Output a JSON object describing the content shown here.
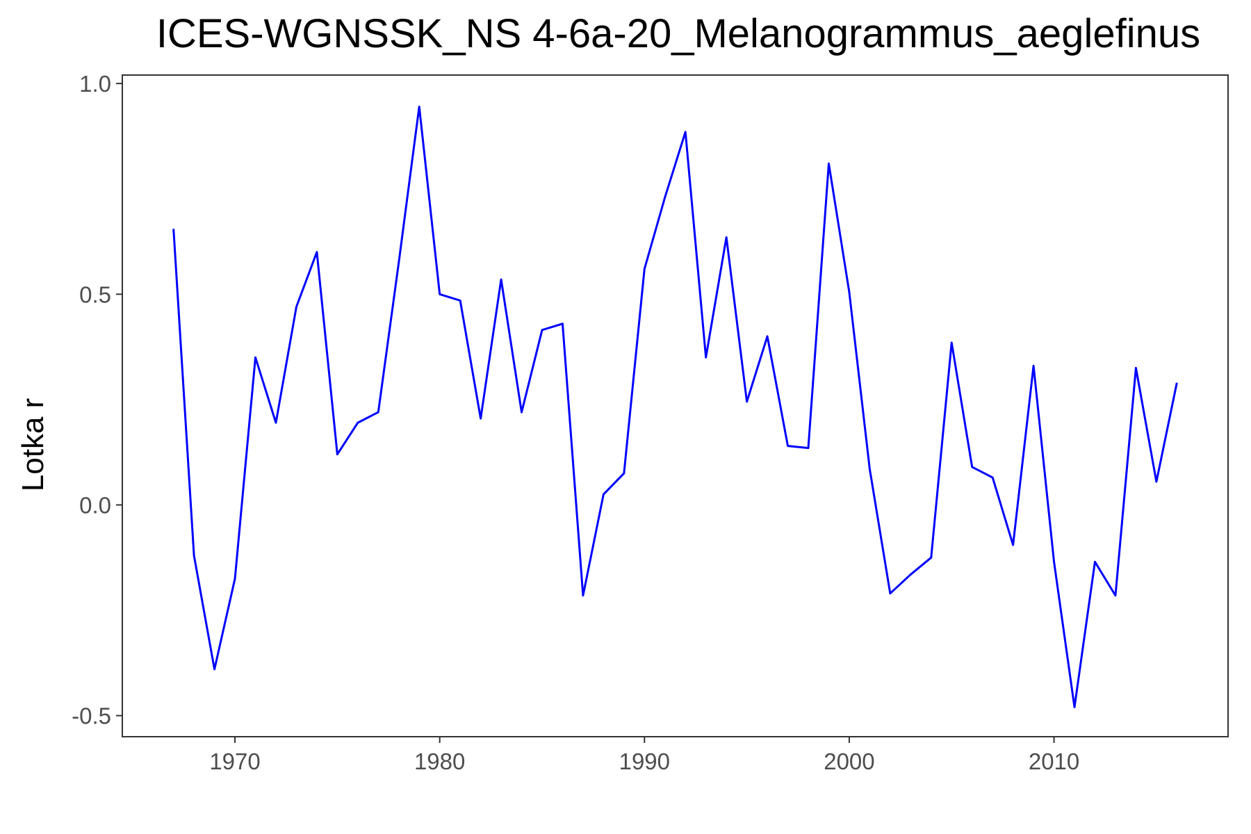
{
  "chart_data": {
    "type": "line",
    "title": "ICES-WGNSSK_NS  4-6a-20_Melanogrammus_aeglefinus",
    "xlabel": "",
    "ylabel": "Lotka r",
    "xlim": [
      1964.5,
      2018.5
    ],
    "ylim": [
      -0.55,
      1.02
    ],
    "x_ticks": [
      1970,
      1980,
      1990,
      2000,
      2010
    ],
    "x_tick_labels": [
      "1970",
      "1980",
      "1990",
      "2000",
      "2010"
    ],
    "y_ticks": [
      -0.5,
      0.0,
      0.5,
      1.0
    ],
    "y_tick_labels": [
      "-0.5",
      "0.0",
      "0.5",
      "1.0"
    ],
    "grid": false,
    "line_color": "#0000ff",
    "axis_color": "#333333",
    "x": [
      1967,
      1968,
      1969,
      1970,
      1971,
      1972,
      1973,
      1974,
      1975,
      1976,
      1977,
      1978,
      1979,
      1980,
      1981,
      1982,
      1983,
      1984,
      1985,
      1986,
      1987,
      1988,
      1989,
      1990,
      1991,
      1992,
      1993,
      1994,
      1995,
      1996,
      1997,
      1998,
      1999,
      2000,
      2001,
      2002,
      2003,
      2004,
      2005,
      2006,
      2007,
      2008,
      2009,
      2010,
      2011,
      2012,
      2013,
      2014,
      2015,
      2016
    ],
    "y": [
      0.655,
      -0.12,
      -0.39,
      -0.175,
      0.35,
      0.195,
      0.47,
      0.6,
      0.12,
      0.195,
      0.22,
      0.575,
      0.945,
      0.5,
      0.485,
      0.205,
      0.535,
      0.22,
      0.415,
      0.43,
      -0.215,
      0.025,
      0.075,
      0.56,
      0.73,
      0.885,
      0.35,
      0.635,
      0.245,
      0.4,
      0.14,
      0.135,
      0.81,
      0.505,
      0.085,
      -0.21,
      -0.165,
      -0.125,
      0.385,
      0.09,
      0.065,
      -0.095,
      0.33,
      -0.135,
      -0.48,
      -0.135,
      -0.215,
      0.325,
      0.055,
      0.29
    ]
  }
}
